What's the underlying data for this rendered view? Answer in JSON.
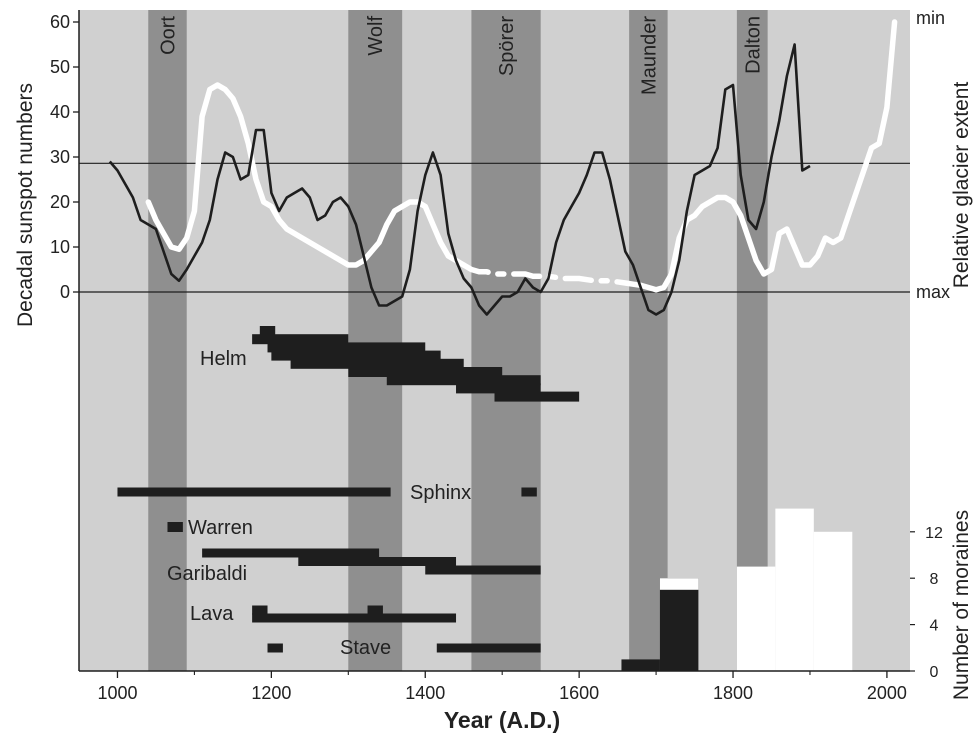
{
  "chart_data": {
    "type": "line",
    "xlabel": "Year (A.D.)",
    "ylabel_left": "Decadal sunspot numbers",
    "ylabel_right_top": "Relative glacier extent",
    "ylabel_right_bottom": "Number of moraines",
    "right_top_labels": {
      "top": "min",
      "bottom": "max"
    },
    "xlim": [
      950,
      2030
    ],
    "ylim_left": [
      0,
      60
    ],
    "x_ticks": [
      1000,
      1200,
      1400,
      1600,
      1800,
      2000
    ],
    "y_ticks_left": [
      0,
      10,
      20,
      30,
      40,
      50,
      60
    ],
    "moraine_ticks": [
      0,
      4,
      8,
      12
    ],
    "mean_line": 28.6,
    "colors": {
      "background": "#d0d0d0",
      "period_band": "#8f8f8f",
      "sunspot_line": "#1e1e1e",
      "glacier_line": "#ffffff",
      "site_bar": "#1e1e1e"
    },
    "periods": [
      {
        "name": "Oort",
        "start": 1040,
        "end": 1090
      },
      {
        "name": "Wolf",
        "start": 1300,
        "end": 1370
      },
      {
        "name": "Spörer",
        "start": 1460,
        "end": 1550
      },
      {
        "name": "Maunder",
        "start": 1665,
        "end": 1715
      },
      {
        "name": "Dalton",
        "start": 1805,
        "end": 1845
      }
    ],
    "series": [
      {
        "key": "sunspots",
        "x": [
          990,
          1000,
          1010,
          1020,
          1030,
          1040,
          1050,
          1060,
          1070,
          1080,
          1090,
          1100,
          1110,
          1120,
          1130,
          1140,
          1150,
          1160,
          1170,
          1180,
          1190,
          1200,
          1210,
          1220,
          1230,
          1240,
          1250,
          1260,
          1270,
          1280,
          1290,
          1300,
          1310,
          1320,
          1330,
          1340,
          1350,
          1360,
          1370,
          1380,
          1390,
          1400,
          1410,
          1420,
          1430,
          1440,
          1450,
          1460,
          1470,
          1480,
          1490,
          1500,
          1510,
          1520,
          1530,
          1540,
          1550,
          1560,
          1570,
          1580,
          1590,
          1600,
          1610,
          1620,
          1630,
          1640,
          1650,
          1660,
          1670,
          1680,
          1690,
          1700,
          1710,
          1720,
          1730,
          1740,
          1750,
          1760,
          1770,
          1780,
          1790,
          1800,
          1810,
          1820,
          1830,
          1840,
          1850,
          1860,
          1870,
          1880,
          1890,
          1900
        ],
        "y": [
          29,
          27,
          24,
          21,
          16,
          15,
          14,
          9,
          4,
          2.5,
          5,
          8,
          11,
          16,
          25,
          31,
          30,
          25,
          26,
          36,
          36,
          22,
          18,
          21,
          22,
          23,
          21,
          16,
          17,
          20,
          21,
          19,
          15,
          8,
          1,
          -3,
          -3,
          -2,
          -1,
          5,
          18,
          26,
          31,
          26,
          13,
          7,
          3,
          1,
          -3,
          -5,
          -3,
          -1,
          -1,
          0,
          3,
          1,
          0,
          3,
          11,
          16,
          19,
          22,
          26,
          31,
          31,
          25,
          17,
          9,
          6,
          1,
          -4,
          -5,
          -4,
          0,
          7,
          18,
          26,
          27,
          28,
          32,
          45,
          46,
          26,
          16,
          14,
          20,
          30,
          38,
          48,
          55,
          27,
          28
        ]
      },
      {
        "key": "glacier",
        "segments": [
          {
            "style": "solid",
            "x": [
              1040,
              1050,
              1060,
              1070,
              1080,
              1090,
              1100,
              1110,
              1120,
              1130,
              1140,
              1150,
              1160,
              1170,
              1180,
              1190,
              1200,
              1210,
              1220,
              1240,
              1260,
              1280,
              1300,
              1310,
              1320,
              1330,
              1340,
              1350,
              1360,
              1370,
              1380,
              1390,
              1400,
              1410,
              1420,
              1430,
              1440,
              1450
            ],
            "y": [
              20,
              16,
              13,
              10,
              9.5,
              12,
              18,
              39,
              45,
              46,
              45,
              43,
              39,
              33,
              25,
              20,
              19,
              16,
              14,
              12,
              10,
              8,
              6,
              6,
              7,
              9,
              11,
              15,
              18,
              19,
              20,
              20,
              19,
              15,
              11,
              8,
              7,
              6
            ]
          },
          {
            "style": "dash",
            "x": [
              1450,
              1460,
              1470,
              1480,
              1490,
              1500,
              1510,
              1520,
              1530,
              1540,
              1550,
              1560,
              1580,
              1600,
              1620,
              1640,
              1660,
              1680
            ],
            "y": [
              6,
              5,
              4.5,
              4.5,
              4,
              4,
              4,
              4,
              4,
              3.5,
              3.5,
              3.5,
              3,
              3,
              2.5,
              2.5,
              2,
              1.5
            ]
          },
          {
            "style": "solid",
            "x": [
              1680,
              1690,
              1700,
              1710,
              1720,
              1730,
              1740,
              1750,
              1760,
              1770,
              1780,
              1790,
              1800,
              1810,
              1820,
              1830,
              1840,
              1850,
              1860,
              1870,
              1880,
              1890,
              1900,
              1910,
              1920,
              1930,
              1940,
              1950,
              1960,
              1970,
              1980,
              1990,
              2000,
              2010
            ],
            "y": [
              1.5,
              1,
              0.5,
              1,
              4,
              12,
              16,
              17,
              19,
              20,
              21,
              21,
              20,
              17,
              12,
              7,
              4,
              5,
              13,
              14,
              10,
              6,
              6,
              8,
              12,
              11,
              12,
              17,
              22,
              27,
              32,
              33,
              41,
              60
            ]
          }
        ]
      }
    ],
    "sites": [
      {
        "name": "Helm",
        "bars": [
          {
            "start": 1185,
            "end": 1205,
            "row": 0
          },
          {
            "start": 1175,
            "end": 1300,
            "row": 1
          },
          {
            "start": 1195,
            "end": 1400,
            "row": 2
          },
          {
            "start": 1200,
            "end": 1420,
            "row": 3
          },
          {
            "start": 1225,
            "end": 1450,
            "row": 4
          },
          {
            "start": 1300,
            "end": 1500,
            "row": 5
          },
          {
            "start": 1350,
            "end": 1550,
            "row": 6
          },
          {
            "start": 1440,
            "end": 1550,
            "row": 7
          },
          {
            "start": 1490,
            "end": 1600,
            "row": 8
          }
        ]
      },
      {
        "name": "Sphinx",
        "bars": [
          {
            "start": 1000,
            "end": 1355,
            "row": 0
          },
          {
            "start": 1525,
            "end": 1545,
            "row": 0
          }
        ]
      },
      {
        "name": "Warren",
        "bars": [
          {
            "start": 1065,
            "end": 1085,
            "row": 0
          }
        ]
      },
      {
        "name": "Garibaldi",
        "bars": [
          {
            "start": 1110,
            "end": 1340,
            "row": 0
          },
          {
            "start": 1235,
            "end": 1440,
            "row": 1
          },
          {
            "start": 1400,
            "end": 1550,
            "row": 2
          }
        ]
      },
      {
        "name": "Lava",
        "bars": [
          {
            "start": 1175,
            "end": 1195,
            "row": 0
          },
          {
            "start": 1325,
            "end": 1345,
            "row": 0
          },
          {
            "start": 1175,
            "end": 1440,
            "row": 1
          }
        ]
      },
      {
        "name": "Stave",
        "bars": [
          {
            "start": 1195,
            "end": 1215,
            "row": 0
          },
          {
            "start": 1415,
            "end": 1550,
            "row": 0
          }
        ]
      }
    ],
    "moraines": [
      {
        "start": 1655,
        "end": 1705,
        "value": 1,
        "fill": "#1e1e1e"
      },
      {
        "start": 1705,
        "end": 1755,
        "value": 8,
        "fill": "#1e1e1e",
        "top_white": 7
      },
      {
        "start": 1805,
        "end": 1855,
        "value": 9,
        "fill": "#ffffff"
      },
      {
        "start": 1855,
        "end": 1905,
        "value": 14,
        "fill": "#ffffff"
      },
      {
        "start": 1905,
        "end": 1955,
        "value": 12,
        "fill": "#ffffff"
      }
    ]
  }
}
